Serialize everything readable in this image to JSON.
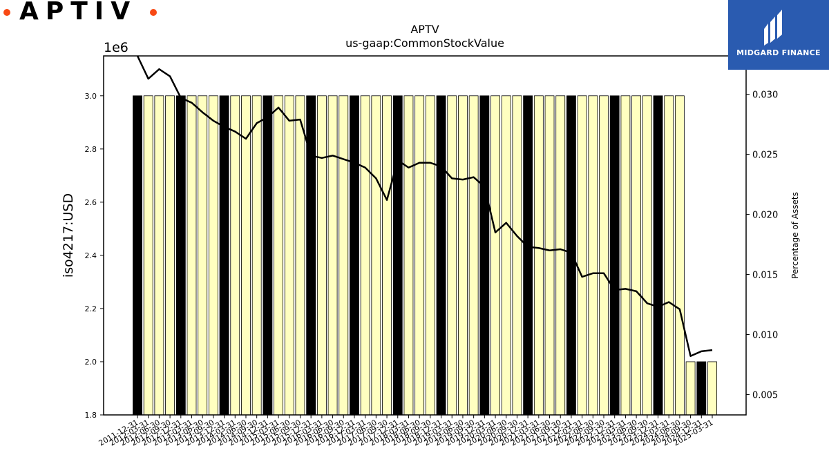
{
  "logos": {
    "left_text": "APTIV",
    "right_text": "MIDGARD FINANCE"
  },
  "chart_data": {
    "type": "bar",
    "title": "APTV",
    "subtitle": "us-gaap:CommonStockValue",
    "ylabel": "iso4217:USD",
    "y_scale_label": "1e6",
    "y2label": "Percentage of Assets",
    "ylim": [
      1800000,
      3150000
    ],
    "y2lim": [
      0.0033,
      0.0332
    ],
    "yticks": [
      "1.8",
      "2.0",
      "2.2",
      "2.4",
      "2.6",
      "2.8",
      "3.0"
    ],
    "y2ticks": [
      "0.005",
      "0.010",
      "0.015",
      "0.020",
      "0.025",
      "0.030"
    ],
    "categories": [
      "2011-12-31",
      "2012-03-31",
      "2012-06-30",
      "2012-09-30",
      "2012-12-31",
      "2013-03-31",
      "2013-06-30",
      "2013-09-30",
      "2013-12-31",
      "2014-03-31",
      "2014-06-30",
      "2014-09-30",
      "2014-12-31",
      "2015-03-31",
      "2015-06-30",
      "2015-09-30",
      "2015-12-31",
      "2016-03-31",
      "2016-06-30",
      "2016-09-30",
      "2016-12-31",
      "2017-03-31",
      "2017-06-30",
      "2017-09-30",
      "2017-12-31",
      "2018-03-31",
      "2018-06-30",
      "2018-09-30",
      "2018-12-31",
      "2019-03-31",
      "2019-06-30",
      "2019-09-30",
      "2019-12-31",
      "2020-03-31",
      "2020-06-30",
      "2020-09-30",
      "2020-12-31",
      "2021-03-31",
      "2021-06-30",
      "2021-09-30",
      "2021-12-31",
      "2022-03-31",
      "2022-06-30",
      "2022-09-30",
      "2022-12-31",
      "2023-03-31",
      "2023-06-30",
      "2023-09-30",
      "2023-12-31",
      "2024-03-31",
      "2024-06-30",
      "2024-09-30",
      "2024-12-31",
      "2025-03-31"
    ],
    "series": [
      {
        "type": "bar",
        "values": [
          3000000,
          3000000,
          3000000,
          3000000,
          3000000,
          3000000,
          3000000,
          3000000,
          3000000,
          3000000,
          3000000,
          3000000,
          3000000,
          3000000,
          3000000,
          3000000,
          3000000,
          3000000,
          3000000,
          3000000,
          3000000,
          3000000,
          3000000,
          3000000,
          3000000,
          3000000,
          3000000,
          3000000,
          3000000,
          3000000,
          3000000,
          3000000,
          3000000,
          3000000,
          3000000,
          3000000,
          3000000,
          3000000,
          3000000,
          3000000,
          3000000,
          3000000,
          3000000,
          3000000,
          3000000,
          3000000,
          3000000,
          3000000,
          3000000,
          3000000,
          3000000,
          2000000,
          2000000,
          2000000
        ],
        "highlight": [
          "2011-12-31",
          "2012-12-31",
          "2013-12-31",
          "2014-12-31",
          "2015-12-31",
          "2016-12-31",
          "2017-12-31",
          "2018-12-31",
          "2019-12-31",
          "2020-12-31",
          "2021-12-31",
          "2022-12-31",
          "2023-12-31",
          "2024-12-31"
        ]
      },
      {
        "type": "line",
        "axis": "right",
        "values": [
          0.0332,
          0.0313,
          0.0321,
          0.0315,
          0.0297,
          0.0293,
          0.0285,
          0.0278,
          0.0273,
          0.0269,
          0.0263,
          0.0276,
          0.0281,
          0.0289,
          0.0278,
          0.0279,
          0.0249,
          0.0247,
          0.0249,
          0.0246,
          0.0243,
          0.0239,
          0.023,
          0.0212,
          0.0245,
          0.0239,
          0.0243,
          0.0243,
          0.024,
          0.023,
          0.0229,
          0.0231,
          0.0223,
          0.0185,
          0.0193,
          0.0182,
          0.0173,
          0.0172,
          0.017,
          0.0171,
          0.0168,
          0.0148,
          0.0151,
          0.0151,
          0.0137,
          0.0138,
          0.0136,
          0.0126,
          0.0123,
          0.0127,
          0.0121,
          0.0082,
          0.0086,
          0.0087
        ]
      }
    ],
    "colors": {
      "bar": "#ffffc0",
      "bar_highlight": "#000000",
      "bar_edge": "#000000",
      "line": "#000000"
    },
    "grid": false
  }
}
